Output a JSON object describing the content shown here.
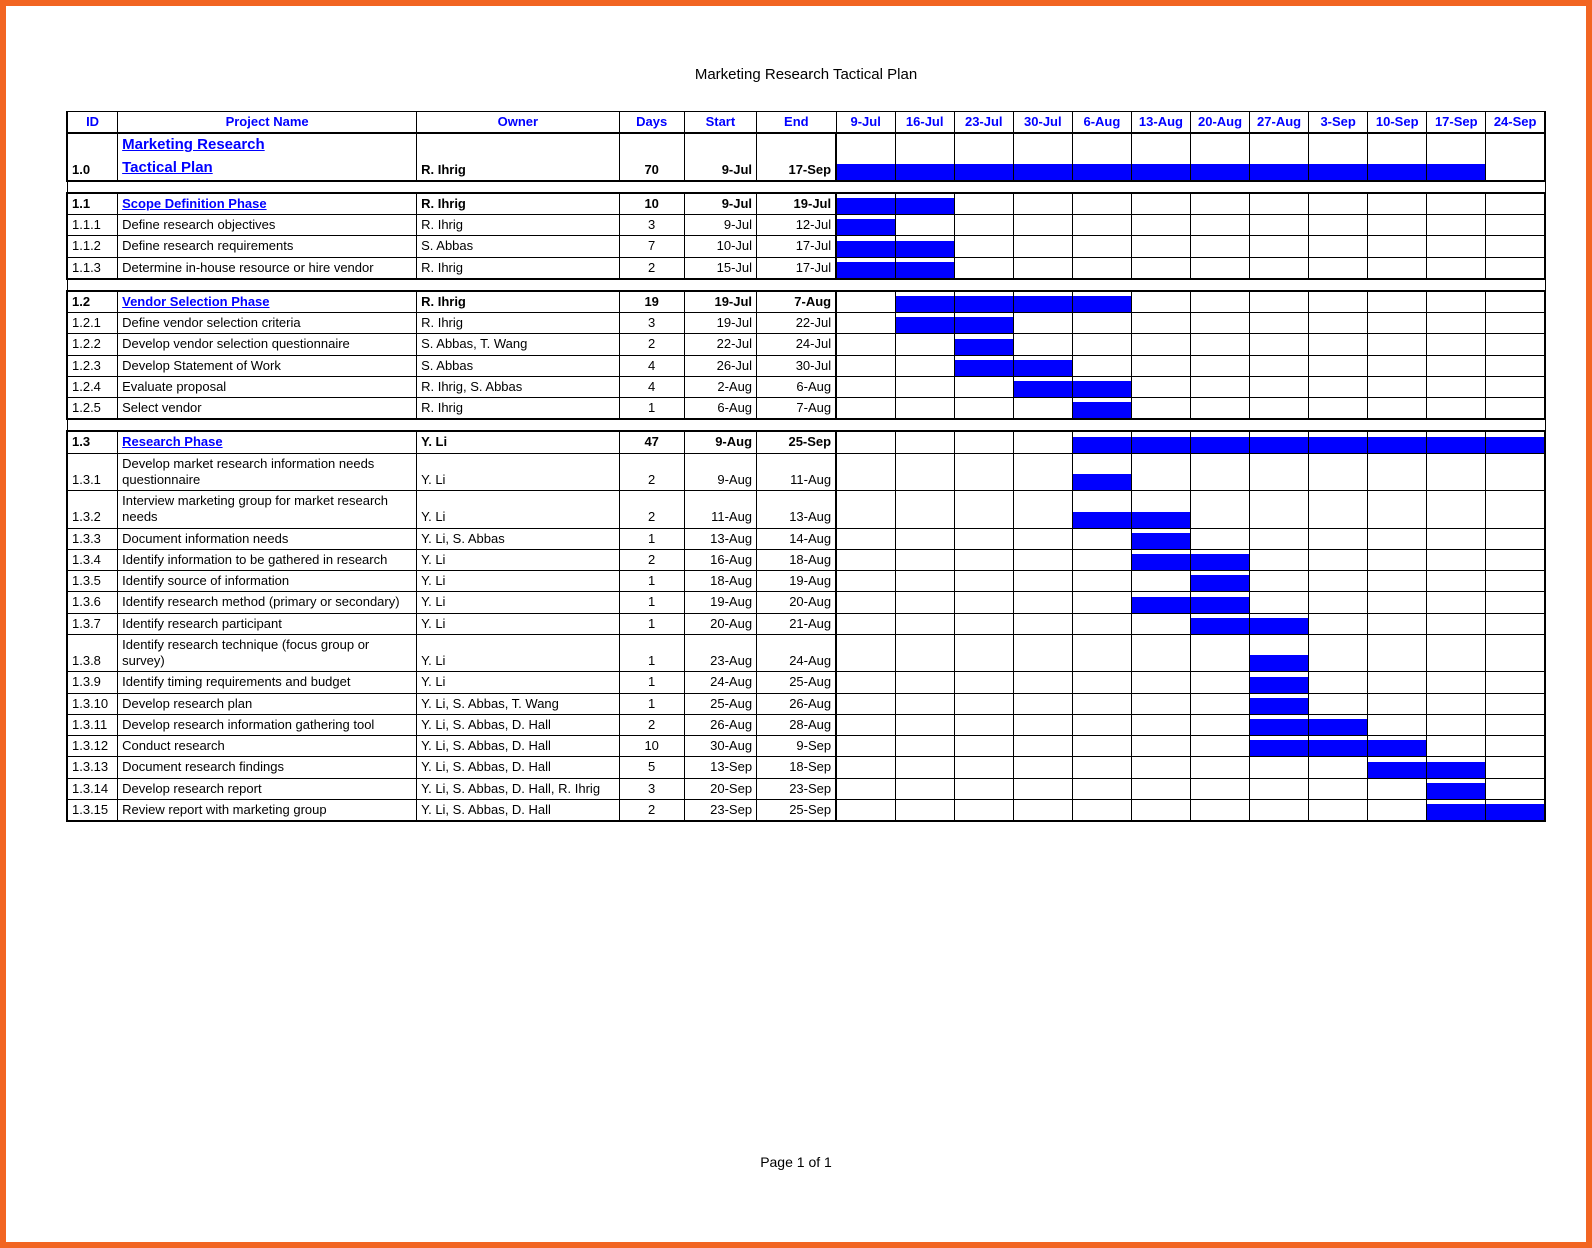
{
  "doc_title": "Marketing Research Tactical Plan",
  "footer": "Page 1 of 1",
  "colors": {
    "border": "#f26522",
    "gantt": "#0000ff",
    "header_text": "#0000ff",
    "grid": "#000000",
    "background": "#ffffff"
  },
  "headers": {
    "id": "ID",
    "name": "Project Name",
    "owner": "Owner",
    "days": "Days",
    "start": "Start",
    "end": "End"
  },
  "weeks": [
    "9-Jul",
    "16-Jul",
    "23-Jul",
    "30-Jul",
    "6-Aug",
    "13-Aug",
    "20-Aug",
    "27-Aug",
    "3-Sep",
    "10-Sep",
    "17-Sep",
    "24-Sep"
  ],
  "rows": [
    {
      "type": "section",
      "id": "1.0",
      "name_line1": "Marketing Research",
      "name_line2": "Tactical Plan",
      "owner": "R. Ihrig",
      "days": "70",
      "start": "9-Jul",
      "end": "17-Sep",
      "bars": [
        0,
        1,
        2,
        3,
        4,
        5,
        6,
        7,
        8,
        9,
        10
      ],
      "bold": true,
      "main": true,
      "top": true,
      "bot": true
    },
    {
      "type": "spacer"
    },
    {
      "type": "phase",
      "id": "1.1",
      "name": "Scope Definition Phase",
      "owner": "R. Ihrig",
      "days": "10",
      "start": "9-Jul",
      "end": "19-Jul",
      "bars": [
        0,
        1
      ],
      "bold": true,
      "top": true
    },
    {
      "type": "task",
      "id": "1.1.1",
      "name": "Define research objectives",
      "owner": "R. Ihrig",
      "days": "3",
      "start": "9-Jul",
      "end": "12-Jul",
      "bars": [
        0
      ]
    },
    {
      "type": "task",
      "id": "1.1.2",
      "name": "Define research requirements",
      "owner": "S. Abbas",
      "days": "7",
      "start": "10-Jul",
      "end": "17-Jul",
      "bars": [
        0,
        1
      ]
    },
    {
      "type": "task",
      "id": "1.1.3",
      "name": "Determine in-house resource or hire vendor",
      "owner": "R. Ihrig",
      "days": "2",
      "start": "15-Jul",
      "end": "17-Jul",
      "bars": [
        0,
        1
      ],
      "bot": true
    },
    {
      "type": "spacer"
    },
    {
      "type": "phase",
      "id": "1.2",
      "name": "Vendor Selection Phase",
      "owner": "R. Ihrig",
      "days": "19",
      "start": "19-Jul",
      "end": "7-Aug",
      "bars": [
        1,
        2,
        3,
        4
      ],
      "bold": true,
      "top": true
    },
    {
      "type": "task",
      "id": "1.2.1",
      "name": "Define vendor selection criteria",
      "owner": "R. Ihrig",
      "days": "3",
      "start": "19-Jul",
      "end": "22-Jul",
      "bars": [
        1,
        2
      ]
    },
    {
      "type": "task",
      "id": "1.2.2",
      "name": "Develop vendor selection questionnaire",
      "owner": "S. Abbas, T. Wang",
      "days": "2",
      "start": "22-Jul",
      "end": "24-Jul",
      "bars": [
        2
      ]
    },
    {
      "type": "task",
      "id": "1.2.3",
      "name": "Develop Statement of Work",
      "owner": "S. Abbas",
      "days": "4",
      "start": "26-Jul",
      "end": "30-Jul",
      "bars": [
        2,
        3
      ]
    },
    {
      "type": "task",
      "id": "1.2.4",
      "name": "Evaluate proposal",
      "owner": "R. Ihrig, S. Abbas",
      "days": "4",
      "start": "2-Aug",
      "end": "6-Aug",
      "bars": [
        3,
        4
      ]
    },
    {
      "type": "task",
      "id": "1.2.5",
      "name": "Select vendor",
      "owner": "R. Ihrig",
      "days": "1",
      "start": "6-Aug",
      "end": "7-Aug",
      "bars": [
        4
      ],
      "bot": true
    },
    {
      "type": "spacer"
    },
    {
      "type": "phase",
      "id": "1.3",
      "name": "Research Phase",
      "owner": "Y. Li",
      "days": "47",
      "start": "9-Aug",
      "end": "25-Sep",
      "bars": [
        4,
        5,
        6,
        7,
        8,
        9,
        10,
        11
      ],
      "bold": true,
      "top": true
    },
    {
      "type": "task",
      "id": "1.3.1",
      "name": "Develop market research information needs questionnaire",
      "owner": "Y. Li",
      "days": "2",
      "start": "9-Aug",
      "end": "11-Aug",
      "bars": [
        4
      ]
    },
    {
      "type": "task",
      "id": "1.3.2",
      "name": "Interview marketing group for market research needs",
      "owner": "Y. Li",
      "days": "2",
      "start": "11-Aug",
      "end": "13-Aug",
      "bars": [
        4,
        5
      ]
    },
    {
      "type": "task",
      "id": "1.3.3",
      "name": "Document information needs",
      "owner": "Y. Li, S. Abbas",
      "days": "1",
      "start": "13-Aug",
      "end": "14-Aug",
      "bars": [
        5
      ]
    },
    {
      "type": "task",
      "id": "1.3.4",
      "name": "Identify information to be gathered in research",
      "owner": "Y. Li",
      "days": "2",
      "start": "16-Aug",
      "end": "18-Aug",
      "bars": [
        5,
        6
      ]
    },
    {
      "type": "task",
      "id": "1.3.5",
      "name": "Identify source of information",
      "owner": "Y. Li",
      "days": "1",
      "start": "18-Aug",
      "end": "19-Aug",
      "bars": [
        6
      ]
    },
    {
      "type": "task",
      "id": "1.3.6",
      "name": "Identify research method (primary or secondary)",
      "owner": "Y. Li",
      "days": "1",
      "start": "19-Aug",
      "end": "20-Aug",
      "bars": [
        5,
        6
      ]
    },
    {
      "type": "task",
      "id": "1.3.7",
      "name": "Identify research participant",
      "owner": "Y. Li",
      "days": "1",
      "start": "20-Aug",
      "end": "21-Aug",
      "bars": [
        6,
        7
      ]
    },
    {
      "type": "task",
      "id": "1.3.8",
      "name": "Identify research technique (focus group or survey)",
      "owner": "Y. Li",
      "days": "1",
      "start": "23-Aug",
      "end": "24-Aug",
      "bars": [
        7
      ]
    },
    {
      "type": "task",
      "id": "1.3.9",
      "name": "Identify timing requirements and budget",
      "owner": "Y. Li",
      "days": "1",
      "start": "24-Aug",
      "end": "25-Aug",
      "bars": [
        7
      ]
    },
    {
      "type": "task",
      "id": "1.3.10",
      "name": "Develop research plan",
      "owner": "Y. Li, S. Abbas, T. Wang",
      "days": "1",
      "start": "25-Aug",
      "end": "26-Aug",
      "bars": [
        7
      ]
    },
    {
      "type": "task",
      "id": "1.3.11",
      "name": "Develop research information gathering tool",
      "owner": "Y. Li, S. Abbas, D. Hall",
      "days": "2",
      "start": "26-Aug",
      "end": "28-Aug",
      "bars": [
        7,
        8
      ]
    },
    {
      "type": "task",
      "id": "1.3.12",
      "name": "Conduct research",
      "owner": "Y. Li, S. Abbas, D. Hall",
      "days": "10",
      "start": "30-Aug",
      "end": "9-Sep",
      "bars": [
        7,
        8,
        9
      ]
    },
    {
      "type": "task",
      "id": "1.3.13",
      "name": "Document research findings",
      "owner": "Y. Li, S. Abbas, D. Hall",
      "days": "5",
      "start": "13-Sep",
      "end": "18-Sep",
      "bars": [
        9,
        10
      ]
    },
    {
      "type": "task",
      "id": "1.3.14",
      "name": "Develop research report",
      "owner": "Y. Li, S. Abbas, D. Hall, R. Ihrig",
      "days": "3",
      "start": "20-Sep",
      "end": "23-Sep",
      "bars": [
        10
      ]
    },
    {
      "type": "task",
      "id": "1.3.15",
      "name": "Review report with marketing group",
      "owner": "Y. Li, S. Abbas, D. Hall",
      "days": "2",
      "start": "23-Sep",
      "end": "25-Sep",
      "bars": [
        10,
        11
      ],
      "bot": true
    }
  ]
}
